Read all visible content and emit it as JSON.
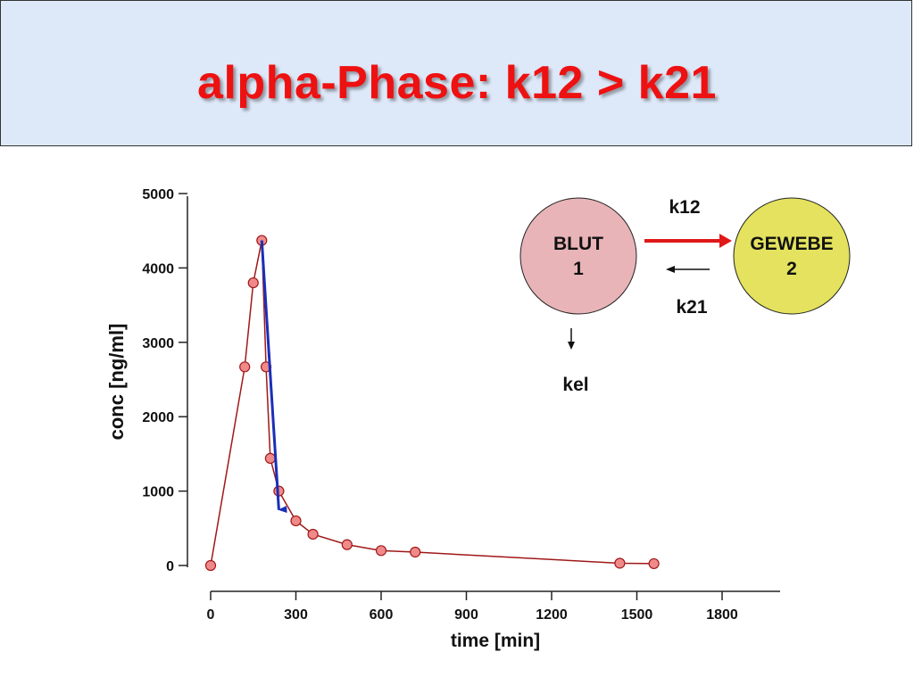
{
  "title": "alpha-Phase: k12 > k21",
  "colors": {
    "series": "#a01818",
    "marker_fill": "#f08a8a",
    "arrow_alpha": "#1a2fb8",
    "arrow_k12": "#e01818",
    "blut_fill": "#e8b4b8",
    "gewebe_fill": "#e4e25e",
    "title_band": "#dde8f8",
    "title_text": "#ee1111"
  },
  "chart_data": {
    "type": "line",
    "xlabel": "time [min]",
    "ylabel": "conc [ng/ml]",
    "xlim": [
      0,
      2000
    ],
    "ylim": [
      0,
      5000
    ],
    "xticks": [
      0,
      300,
      600,
      900,
      1200,
      1500,
      1800
    ],
    "yticks": [
      0,
      1000,
      2000,
      3000,
      4000,
      5000
    ],
    "grid": false,
    "points": [
      {
        "x": 0,
        "y": 0
      },
      {
        "x": 120,
        "y": 2670
      },
      {
        "x": 150,
        "y": 3800
      },
      {
        "x": 180,
        "y": 4370
      },
      {
        "x": 195,
        "y": 2670
      },
      {
        "x": 210,
        "y": 1440
      },
      {
        "x": 240,
        "y": 1000
      },
      {
        "x": 300,
        "y": 600
      },
      {
        "x": 360,
        "y": 420
      },
      {
        "x": 480,
        "y": 280
      },
      {
        "x": 600,
        "y": 200
      },
      {
        "x": 720,
        "y": 180
      },
      {
        "x": 1440,
        "y": 30
      },
      {
        "x": 1560,
        "y": 25
      }
    ],
    "alpha_arrow": {
      "from": {
        "x": 180,
        "y": 4370
      },
      "to": {
        "x": 240,
        "y": 700
      }
    }
  },
  "diagram": {
    "blut": {
      "line1": "BLUT",
      "line2": "1"
    },
    "gewebe": {
      "line1": "GEWEBE",
      "line2": "2"
    },
    "k12": "k12",
    "k21": "k21",
    "kel": "kel"
  }
}
